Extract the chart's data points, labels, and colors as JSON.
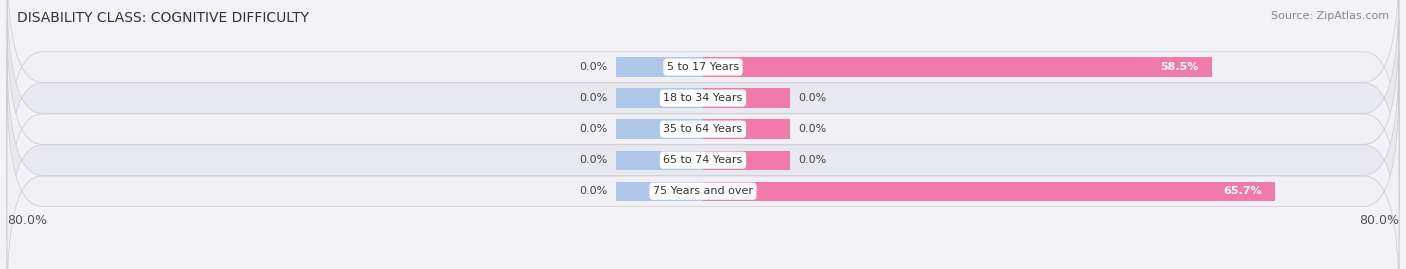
{
  "title": "DISABILITY CLASS: COGNITIVE DIFFICULTY",
  "source": "Source: ZipAtlas.com",
  "categories": [
    "5 to 17 Years",
    "18 to 34 Years",
    "35 to 64 Years",
    "65 to 74 Years",
    "75 Years and over"
  ],
  "male_values": [
    0.0,
    0.0,
    0.0,
    0.0,
    0.0
  ],
  "female_values": [
    58.5,
    0.0,
    0.0,
    0.0,
    65.7
  ],
  "male_color": "#aec6e8",
  "female_color": "#f07aaa",
  "row_bg_light": "#f0f0f5",
  "row_bg_dark": "#e8e8f0",
  "xlim_min": -80.0,
  "xlim_max": 80.0,
  "stub_size": 10.0,
  "title_fontsize": 10,
  "source_fontsize": 8,
  "label_fontsize": 8,
  "category_fontsize": 8,
  "axis_label_fontsize": 9,
  "legend_fontsize": 9,
  "background_color": "#f2f2f7"
}
